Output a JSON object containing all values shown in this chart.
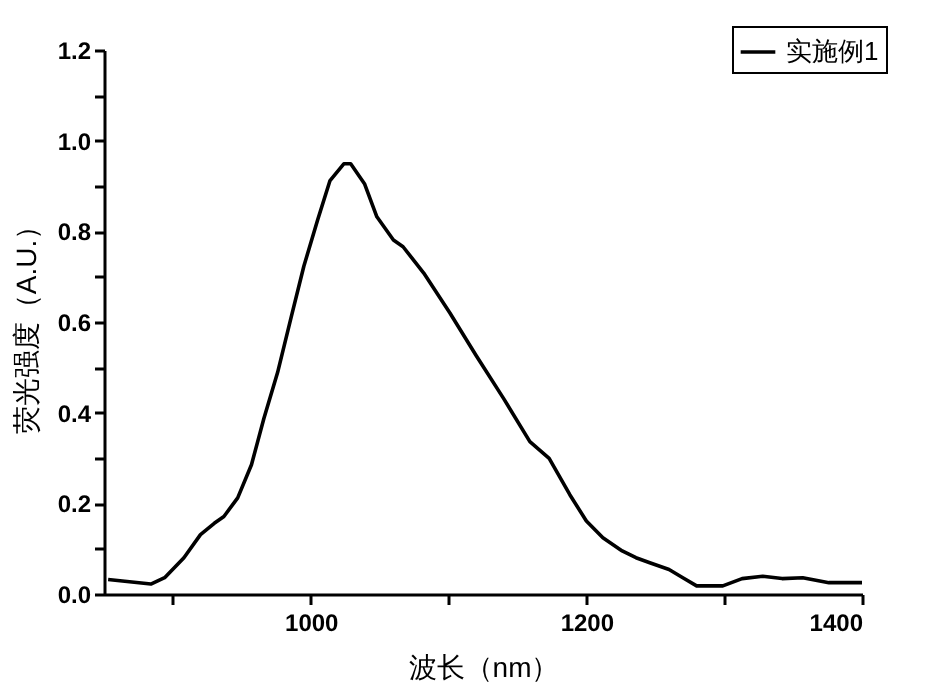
{
  "chart_data": {
    "type": "line",
    "xlabel": "波长（nm）",
    "ylabel": "荧光强度（A.U.）",
    "legend": "top right",
    "grid": false,
    "marker": "none",
    "line_style": "solid",
    "xlim": [
      850,
      1400
    ],
    "xticks": [
      {
        "value": 900,
        "label": null
      },
      1000,
      {
        "value": 1100,
        "label": null
      },
      1200,
      {
        "value": 1300,
        "label": null
      },
      1400
    ],
    "ylim": [
      0,
      1.2
    ],
    "yticks": [
      {
        "value": 0,
        "label": "0.0"
      },
      {
        "value": 0.1,
        "label": null
      },
      0.2,
      {
        "value": 0.3,
        "label": null
      },
      0.4,
      {
        "value": 0.5,
        "label": null
      },
      0.6,
      {
        "value": 0.7,
        "label": null
      },
      0.8,
      {
        "value": 0.9,
        "label": null
      },
      {
        "value": 1,
        "label": "1.0"
      },
      {
        "value": 1.1,
        "label": null
      },
      1.2
    ],
    "x": [
      853,
      884,
      894,
      908,
      920,
      930,
      937,
      947,
      957,
      966,
      976,
      986,
      995,
      1005,
      1014,
      1024,
      1029,
      1039,
      1048,
      1060,
      1067,
      1082,
      1101,
      1120,
      1140,
      1159,
      1173,
      1188,
      1200,
      1212,
      1226,
      1236,
      1246,
      1260,
      1270,
      1280,
      1299,
      1313,
      1328,
      1342,
      1357,
      1376,
      1400
    ],
    "series": [
      {
        "name": "实施例1",
        "color": "#000000",
        "values": [
          0.032,
          0.022,
          0.036,
          0.08,
          0.131,
          0.156,
          0.171,
          0.212,
          0.285,
          0.387,
          0.489,
          0.613,
          0.723,
          0.825,
          0.912,
          0.949,
          0.949,
          0.905,
          0.832,
          0.781,
          0.766,
          0.708,
          0.62,
          0.526,
          0.431,
          0.336,
          0.299,
          0.219,
          0.161,
          0.124,
          0.095,
          0.08,
          0.069,
          0.054,
          0.036,
          0.018,
          0.018,
          0.034,
          0.039,
          0.034,
          0.036,
          0.025,
          0.025
        ]
      }
    ]
  }
}
